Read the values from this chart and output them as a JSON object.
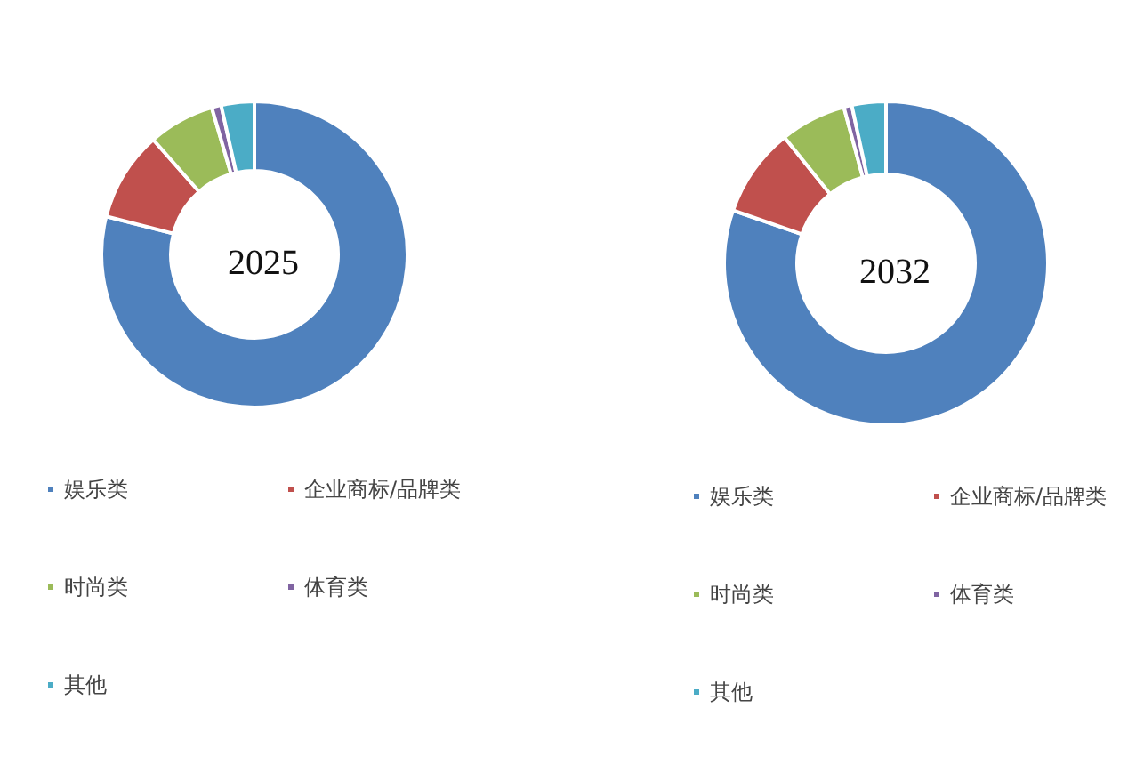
{
  "chart_data": [
    {
      "type": "donut",
      "title": "2025",
      "categories": [
        "娱乐类",
        "企业商标/品牌类",
        "时尚类",
        "体育类",
        "其他"
      ],
      "values": [
        79,
        9.5,
        7,
        1,
        3.5
      ],
      "colors": [
        "#4f81bd",
        "#c0504d",
        "#9bbb59",
        "#8064a2",
        "#4bacc6"
      ],
      "legend": "bottom"
    },
    {
      "type": "donut",
      "title": "2032",
      "categories": [
        "娱乐类",
        "企业商标/品牌类",
        "时尚类",
        "体育类",
        "其他"
      ],
      "values": [
        80.3,
        8.9,
        6.6,
        0.8,
        3.4
      ],
      "colors": [
        "#4f81bd",
        "#c0504d",
        "#9bbb59",
        "#8064a2",
        "#4bacc6"
      ],
      "legend": "bottom"
    }
  ]
}
